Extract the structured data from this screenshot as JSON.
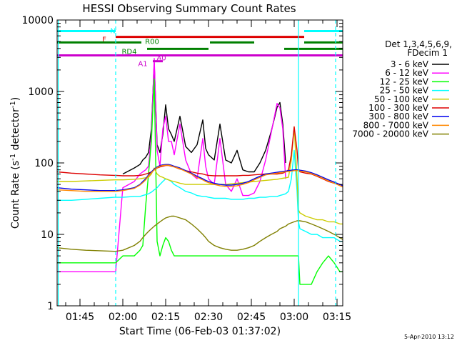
{
  "chart_data": {
    "type": "line",
    "title": "HESSI Observing Summary Count Rates",
    "xlabel": "Start Time (06-Feb-03 01:37:02)",
    "ylabel_main": "Count Rate (s",
    "ylabel_sup1": "-1",
    "ylabel_mid": " detector",
    "ylabel_sup2": "-1",
    "ylabel_end": ")",
    "y_scale": "log",
    "ylim": [
      1,
      10000
    ],
    "xlim_minutes": [
      97.0,
      197.0
    ],
    "x_ticks": [
      {
        "label": "01:45",
        "m": 105
      },
      {
        "label": "02:00",
        "m": 120
      },
      {
        "label": "02:15",
        "m": 135
      },
      {
        "label": "02:30",
        "m": 150
      },
      {
        "label": "02:45",
        "m": 165
      },
      {
        "label": "03:00",
        "m": 180
      },
      {
        "label": "03:15",
        "m": 195
      }
    ],
    "y_ticks": [
      {
        "label": "1",
        "v": 1
      },
      {
        "label": "10",
        "v": 10
      },
      {
        "label": "100",
        "v": 100
      },
      {
        "label": "1000",
        "v": 1000
      },
      {
        "label": "10000",
        "v": 10000
      }
    ],
    "legend": {
      "header1": "Det 1,3,4,5,6,9,",
      "header2": "FDecim 1",
      "placement": "right"
    },
    "series": [
      {
        "name": "3 - 6 keV",
        "color": "#000000"
      },
      {
        "name": "6 - 12 keV",
        "color": "#ff00ff"
      },
      {
        "name": "12 - 25 keV",
        "color": "#00ff00"
      },
      {
        "name": "25 - 50 keV",
        "color": "#00ffff"
      },
      {
        "name": "50 - 100 keV",
        "color": "#cccc00"
      },
      {
        "name": "100 - 300 keV",
        "color": "#dd0000"
      },
      {
        "name": "300 - 800 keV",
        "color": "#0000ee"
      },
      {
        "name": "800 - 7000 keV",
        "color": "#ff8800"
      },
      {
        "name": "7000 - 20000 keV",
        "color": "#808000"
      }
    ],
    "flags": [
      {
        "label": "N",
        "color": "#00ffff",
        "spans": [
          [
            97.0,
            117.5
          ],
          [
            183.5,
            197.0
          ]
        ],
        "v": 7000
      },
      {
        "label": "F",
        "color": "#dd0000",
        "spans": [
          [
            117.5,
            183.5
          ]
        ],
        "v": 5800
      },
      {
        "label": "R00",
        "color": "#008000",
        "spans": [
          [
            97.0,
            126.5
          ],
          [
            150.5,
            166.0
          ],
          [
            183.5,
            197.0
          ]
        ],
        "v": 4850
      },
      {
        "label": "RD4",
        "color": "#008000",
        "spans": [
          [
            128.5,
            150.0
          ],
          [
            176.5,
            197.0
          ]
        ],
        "v": 3950
      },
      {
        "label": "A0",
        "color": "#cc00cc",
        "spans": [
          [
            97.0,
            197.0
          ]
        ],
        "v": 3200
      },
      {
        "label": "A1",
        "color": "#cc00cc",
        "spans": [
          [
            130.5,
            134.0
          ]
        ],
        "v": 2650
      }
    ],
    "vlines": [
      {
        "m": 97.4,
        "color": "#00ffff",
        "style": "solid"
      },
      {
        "m": 117.5,
        "color": "#00ffff",
        "style": "dashed"
      },
      {
        "m": 181.5,
        "color": "#00ffff",
        "style": "solid"
      },
      {
        "m": 194.5,
        "color": "#00ffff",
        "style": "dashed"
      }
    ],
    "data": {
      "m": [
        97,
        102,
        107,
        112,
        117,
        117.5,
        120,
        124,
        126,
        127,
        128,
        129,
        130,
        131,
        132,
        133,
        134,
        135,
        136,
        137,
        138,
        140,
        142,
        144,
        146,
        148,
        149,
        150,
        152,
        154,
        156,
        158,
        160,
        162,
        164,
        166,
        168,
        170,
        172,
        174,
        175,
        176,
        177,
        178,
        179,
        180,
        181,
        181.5,
        182,
        184,
        186,
        188,
        190,
        192,
        194,
        196,
        197
      ],
      "3 - 6 keV": [
        null,
        null,
        null,
        null,
        null,
        null,
        70,
        85,
        95,
        110,
        120,
        140,
        300,
        2500,
        180,
        140,
        250,
        650,
        300,
        250,
        200,
        450,
        170,
        140,
        180,
        400,
        160,
        130,
        110,
        350,
        110,
        100,
        150,
        80,
        75,
        75,
        100,
        150,
        280,
        600,
        700,
        350,
        100,
        null,
        null,
        null,
        null,
        null,
        null,
        null,
        null,
        null,
        null,
        null,
        null,
        null,
        null
      ],
      "6 - 12 keV": [
        3,
        3,
        3,
        3,
        3,
        3,
        45,
        55,
        70,
        75,
        80,
        90,
        250,
        2900,
        150,
        90,
        300,
        450,
        200,
        200,
        130,
        350,
        110,
        70,
        60,
        220,
        90,
        60,
        50,
        220,
        50,
        40,
        60,
        35,
        35,
        38,
        55,
        110,
        270,
        680,
        590,
        300,
        60,
        null,
        null,
        null,
        null,
        null,
        null,
        null,
        null,
        null,
        null,
        null,
        null,
        null,
        null
      ],
      "12 - 25 keV": [
        4,
        4,
        4,
        4,
        4,
        4,
        5,
        5,
        6,
        7,
        25,
        70,
        200,
        1500,
        8,
        5,
        7,
        9,
        8,
        6,
        5,
        5,
        5,
        5,
        5,
        5,
        5,
        5,
        5,
        5,
        5,
        5,
        5,
        5,
        5,
        5,
        5,
        5,
        5,
        5,
        5,
        5,
        5,
        5,
        5,
        5,
        5,
        5,
        2,
        2,
        2,
        3,
        4,
        5,
        4,
        3,
        3
      ],
      "25 - 50 keV": [
        30,
        30,
        31,
        32,
        33,
        33,
        33,
        34,
        34,
        35,
        36,
        37,
        39,
        42,
        45,
        50,
        55,
        60,
        58,
        55,
        50,
        45,
        40,
        38,
        35,
        34,
        34,
        33,
        32,
        32,
        32,
        31,
        31,
        31,
        32,
        32,
        33,
        33,
        34,
        34,
        35,
        36,
        37,
        40,
        60,
        150,
        40,
        15,
        12,
        11,
        10,
        10,
        9,
        9,
        9,
        8,
        8
      ],
      "50 - 100 keV": [
        55,
        55,
        56,
        57,
        58,
        58,
        58,
        59,
        60,
        61,
        62,
        63,
        70,
        85,
        70,
        65,
        63,
        60,
        58,
        56,
        55,
        52,
        50,
        50,
        50,
        50,
        50,
        50,
        50,
        50,
        50,
        51,
        52,
        53,
        54,
        55,
        56,
        57,
        58,
        59,
        60,
        61,
        62,
        63,
        110,
        320,
        60,
        22,
        20,
        18,
        17,
        16,
        16,
        15,
        15,
        14,
        14
      ],
      "100 - 300 keV": [
        75,
        72,
        70,
        68,
        67,
        67,
        66,
        66,
        67,
        68,
        70,
        72,
        75,
        80,
        85,
        88,
        90,
        92,
        92,
        90,
        88,
        82,
        78,
        75,
        72,
        70,
        68,
        67,
        66,
        66,
        66,
        66,
        66,
        67,
        67,
        68,
        69,
        70,
        70,
        70,
        71,
        72,
        75,
        80,
        130,
        320,
        150,
        80,
        75,
        72,
        70,
        65,
        60,
        55,
        52,
        50,
        48
      ],
      "300 - 800 keV": [
        45,
        43,
        42,
        41,
        41,
        41,
        42,
        45,
        50,
        55,
        60,
        68,
        75,
        82,
        88,
        92,
        94,
        95,
        95,
        93,
        90,
        85,
        78,
        72,
        65,
        60,
        57,
        55,
        52,
        50,
        49,
        49,
        50,
        52,
        55,
        60,
        65,
        70,
        72,
        74,
        75,
        76,
        77,
        78,
        79,
        80,
        80,
        80,
        79,
        77,
        73,
        68,
        63,
        58,
        54,
        50,
        48
      ],
      "800 - 7000 keV": [
        42,
        41,
        40,
        40,
        40,
        40,
        41,
        44,
        49,
        53,
        58,
        66,
        73,
        80,
        86,
        90,
        92,
        93,
        93,
        91,
        88,
        83,
        76,
        70,
        63,
        58,
        55,
        53,
        50,
        48,
        47,
        47,
        48,
        50,
        53,
        58,
        63,
        68,
        70,
        72,
        73,
        74,
        75,
        76,
        77,
        78,
        78,
        78,
        77,
        75,
        71,
        66,
        61,
        56,
        52,
        48,
        46
      ],
      "7000 - 20000 keV": [
        6.5,
        6.2,
        6,
        5.9,
        5.8,
        5.8,
        6,
        7,
        8,
        9,
        10,
        11,
        12,
        13,
        14,
        15,
        16,
        17,
        17.5,
        18,
        18,
        17,
        16,
        14,
        12,
        10,
        9,
        8,
        7,
        6.5,
        6.2,
        6,
        6,
        6.2,
        6.5,
        7,
        8,
        9,
        10,
        11,
        12,
        12.5,
        13,
        14,
        14.5,
        15,
        15.5,
        15.5,
        15.5,
        15,
        14,
        13,
        12,
        11,
        10,
        9,
        8.5
      ]
    }
  },
  "footer_date": "5-Apr-2010 13:12"
}
